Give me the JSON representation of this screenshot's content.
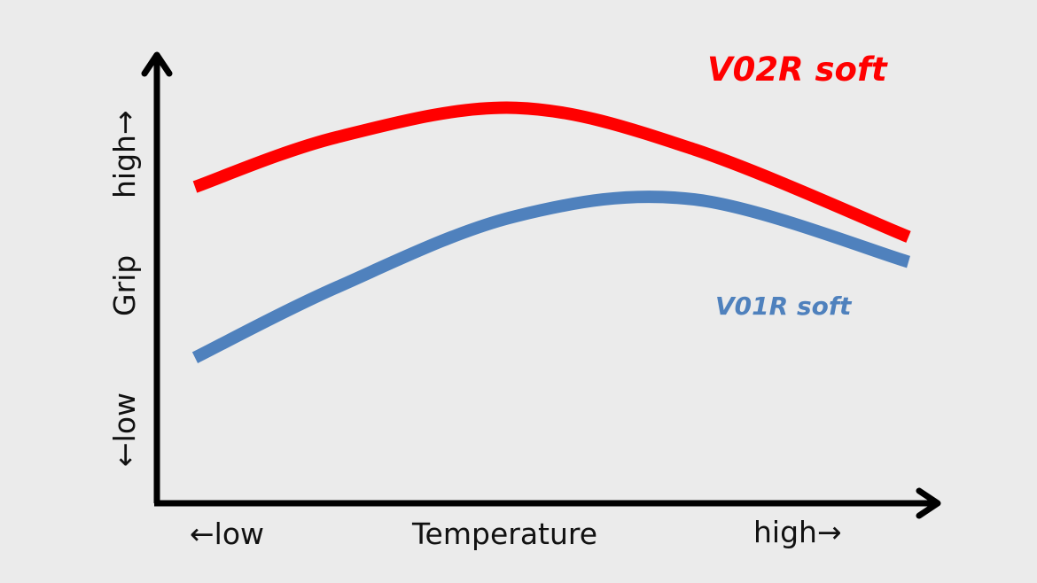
{
  "chart_data": {
    "type": "line",
    "title": "",
    "xlabel": "Temperature",
    "ylabel": "Grip",
    "x_low_label": "←low",
    "x_high_label": "high→",
    "y_low_label": "←low",
    "y_high_label": "high→",
    "grid": false,
    "legend": "inline labels next to curves",
    "xlim": [
      0,
      100
    ],
    "ylim": [
      0,
      100
    ],
    "x": [
      0,
      20,
      45,
      70,
      100
    ],
    "series": [
      {
        "name": "V02R soft",
        "color": "#ff0000",
        "values": [
          70,
          82,
          89,
          79,
          58
        ]
      },
      {
        "name": "V01R soft",
        "color": "#4f81bd",
        "values": [
          29,
          46,
          63,
          67,
          52
        ]
      }
    ]
  }
}
